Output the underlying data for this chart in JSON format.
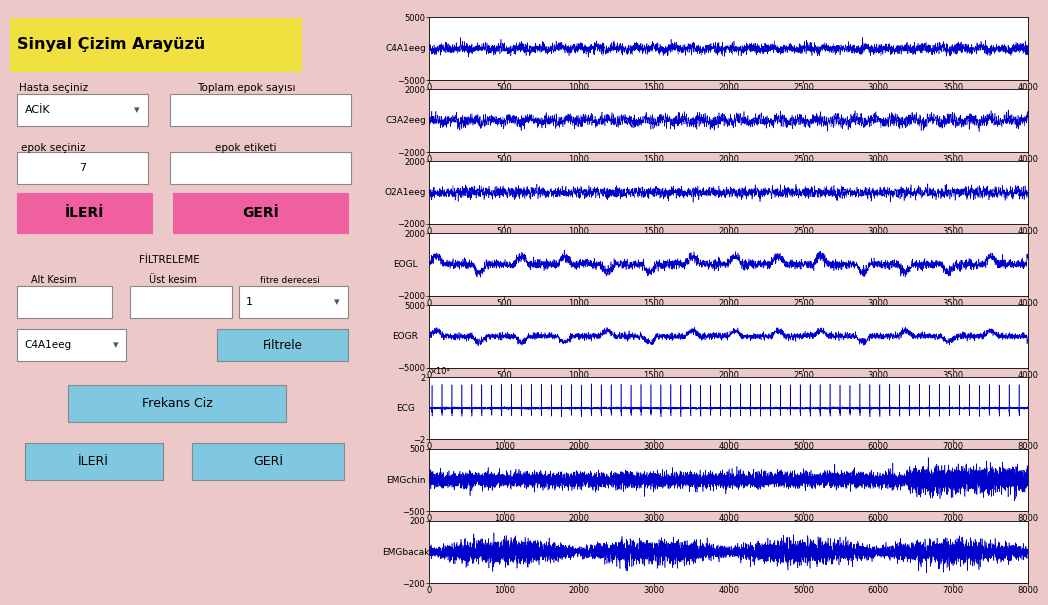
{
  "bg_color": "#ecc8c8",
  "title": "Sinyal Çizim Arayüzü",
  "title_bg": "#f0e040",
  "signals": [
    {
      "label": "C4A1eeg",
      "ylim": [
        -5000,
        5000
      ],
      "xlim": [
        0,
        4000
      ],
      "xticks": [
        0,
        500,
        1000,
        1500,
        2000,
        2500,
        3000,
        3500,
        4000
      ]
    },
    {
      "label": "C3A2eeg",
      "ylim": [
        -2000,
        2000
      ],
      "xlim": [
        0,
        4000
      ],
      "xticks": [
        0,
        500,
        1000,
        1500,
        2000,
        2500,
        3000,
        3500,
        4000
      ]
    },
    {
      "label": "O2A1eeg",
      "ylim": [
        -2000,
        2000
      ],
      "xlim": [
        0,
        4000
      ],
      "xticks": [
        0,
        500,
        1000,
        1500,
        2000,
        2500,
        3000,
        3500,
        4000
      ]
    },
    {
      "label": "EOGL",
      "ylim": [
        -2000,
        2000
      ],
      "xlim": [
        0,
        4000
      ],
      "xticks": [
        0,
        500,
        1000,
        1500,
        2000,
        2500,
        3000,
        3500,
        4000
      ]
    },
    {
      "label": "EOGR",
      "ylim": [
        -5000,
        5000
      ],
      "xlim": [
        0,
        4000
      ],
      "xticks": [
        0,
        500,
        1000,
        1500,
        2000,
        2500,
        3000,
        3500,
        4000
      ]
    },
    {
      "label": "ECG",
      "ylim": [
        -2,
        2
      ],
      "xlim": [
        0,
        8000
      ],
      "xticks": [
        0,
        1000,
        2000,
        3000,
        4000,
        5000,
        6000,
        7000,
        8000
      ],
      "note": "×10⁴"
    },
    {
      "label": "EMGchin",
      "ylim": [
        -500,
        500
      ],
      "xlim": [
        0,
        8000
      ],
      "xticks": [
        0,
        1000,
        2000,
        3000,
        4000,
        5000,
        6000,
        7000,
        8000
      ]
    },
    {
      "label": "EMGbacak",
      "ylim": [
        -200,
        200
      ],
      "xlim": [
        0,
        8000
      ],
      "xticks": [
        0,
        1000,
        2000,
        3000,
        4000,
        5000,
        6000,
        7000,
        8000
      ]
    }
  ],
  "signal_color": "#0000cc",
  "white": "#ffffff",
  "pink_btn": "#f060a0",
  "cyan_btn": "#80c8e0",
  "ui": {
    "hasta_label": "Hasta seçiniz",
    "toplam_label": "Toplam epok sayısı",
    "acik_text": "ACİK",
    "epok_seciniz": "epok seçiniz",
    "epok_etiketi": "epok etiketi",
    "epok_val": "7",
    "ileri1": "İLERİ",
    "geri1": "GERİ",
    "filtreleme": "FİLTRELEME",
    "alt_kesim": "Alt Kesim",
    "ust_kesim": "Üst kesim",
    "fitre_derecesi": "fitre derecesi",
    "filtre_val": "1",
    "c4a1eeg": "C4A1eeg",
    "filtrele": "Filtrele",
    "frekans_ciz": "Frekans Ciz",
    "ileri2": "İLERİ",
    "geri2": "GERİ"
  }
}
